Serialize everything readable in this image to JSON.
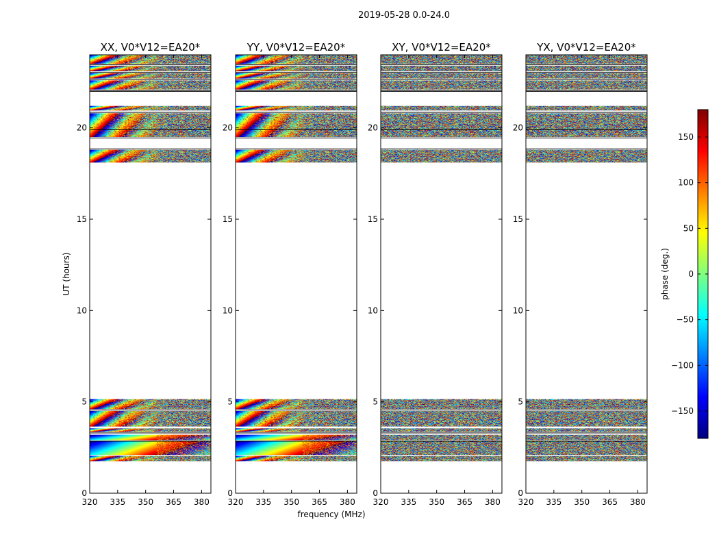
{
  "figure_title": "2019-05-28 0.0-24.0",
  "colors": {
    "jet": [
      "#00007f",
      "#0000ff",
      "#007fff",
      "#00ffff",
      "#7fff7f",
      "#ffff00",
      "#ff7f00",
      "#ff0000",
      "#7f0000"
    ],
    "frame": "#000000"
  },
  "chart_data": {
    "type": "heatmap",
    "title": "2019-05-28 0.0-24.0",
    "xlabel": "frequency (MHz)",
    "ylabel": "UT (hours)",
    "xlim": [
      320,
      385
    ],
    "ylim": [
      0,
      24
    ],
    "xticks": [
      320,
      335,
      350,
      365,
      380
    ],
    "yticks": [
      0,
      5,
      10,
      15,
      20
    ],
    "colorbar": {
      "label": "phase (deg.)",
      "range": [
        -180,
        180
      ],
      "ticks": [
        150,
        100,
        50,
        0,
        -50,
        -100,
        -150
      ],
      "tick_labels": [
        "150",
        "100",
        "50",
        "0",
        "−50",
        "−100",
        "−150"
      ],
      "colormap": "jet"
    },
    "panels": [
      {
        "title": "XX, V0*V12=EA20*",
        "pattern": "fringe"
      },
      {
        "title": "YY, V0*V12=EA20*",
        "pattern": "fringe"
      },
      {
        "title": "XY, V0*V12=EA20*",
        "pattern": "noise"
      },
      {
        "title": "YX, V0*V12=EA20*",
        "pattern": "noise"
      }
    ],
    "data_time_ranges_hours": [
      [
        1.75,
        2.05
      ],
      [
        2.1,
        2.85
      ],
      [
        2.9,
        3.2
      ],
      [
        3.35,
        3.55
      ],
      [
        3.65,
        4.5
      ],
      [
        4.6,
        5.15
      ],
      [
        18.1,
        18.8
      ],
      [
        19.5,
        20.8
      ],
      [
        20.95,
        21.2
      ],
      [
        22.1,
        22.6
      ],
      [
        22.7,
        23.0
      ],
      [
        23.1,
        23.4
      ],
      [
        23.5,
        24.0
      ]
    ],
    "gap_lines_hours": [
      2.85,
      3.3,
      4.55,
      18.85,
      19.45,
      19.9,
      20.85,
      22.0,
      22.05,
      22.65,
      23.05,
      23.45
    ]
  }
}
